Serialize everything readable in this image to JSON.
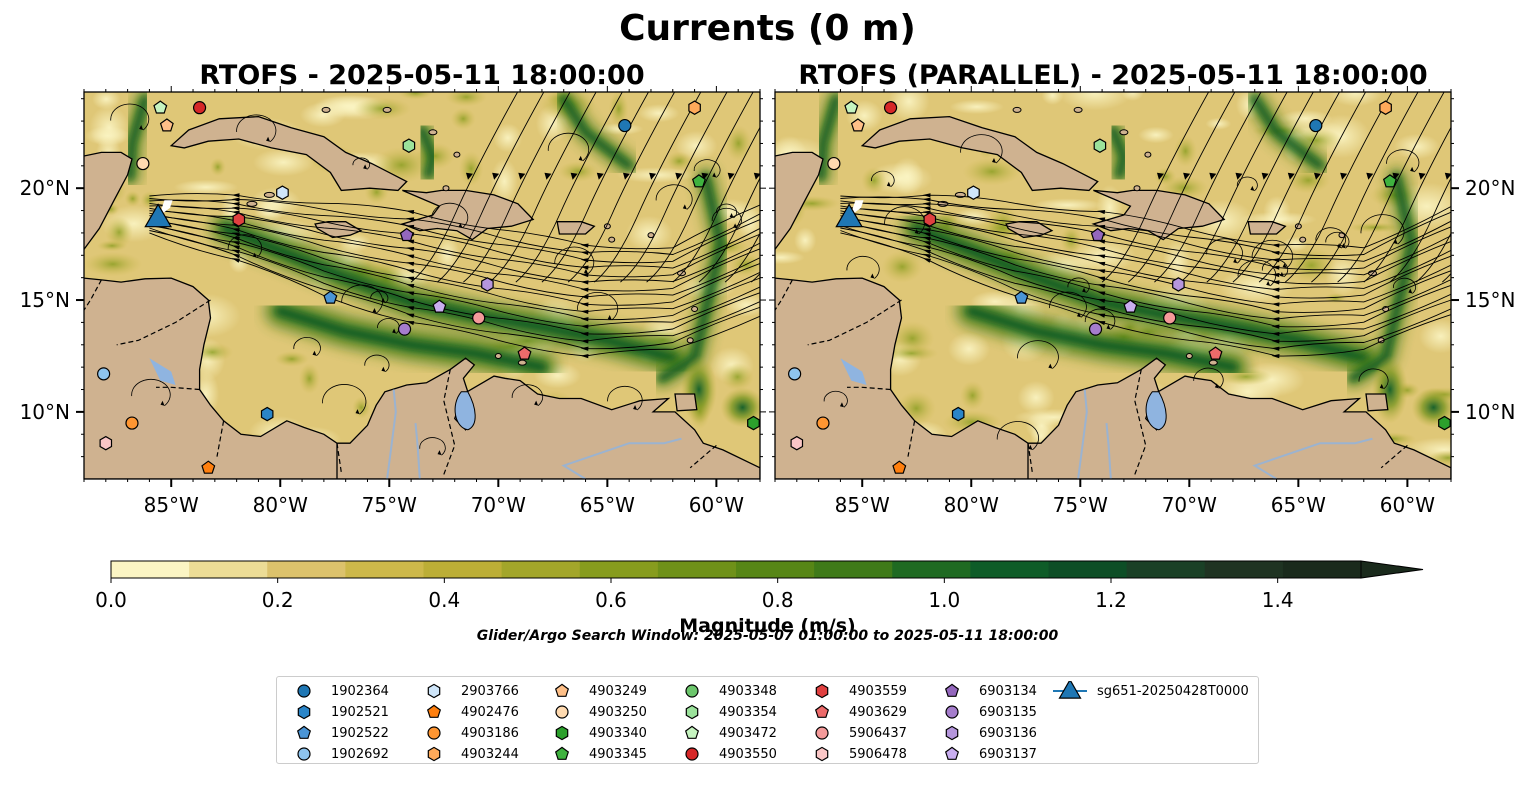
{
  "figure": {
    "title": "Currents (0 m)",
    "panels": [
      {
        "title": "RTOFS - 2025-05-11 18:00:00"
      },
      {
        "title": "RTOFS (PARALLEL) - 2025-05-11 18:00:00"
      }
    ],
    "map_extent": {
      "lon": [
        -89,
        -58
      ],
      "lat": [
        7,
        24.3
      ]
    },
    "lon_ticks": [
      {
        "value": -85,
        "label": "85°W"
      },
      {
        "value": -80,
        "label": "80°W"
      },
      {
        "value": -75,
        "label": "75°W"
      },
      {
        "value": -70,
        "label": "70°W"
      },
      {
        "value": -65,
        "label": "65°W"
      },
      {
        "value": -60,
        "label": "60°W"
      }
    ],
    "lat_ticks": [
      {
        "value": 20,
        "label": "20°N"
      },
      {
        "value": 15,
        "label": "15°N"
      },
      {
        "value": 10,
        "label": "10°N"
      }
    ],
    "colorbar": {
      "label": "Magnitude (m/s)",
      "min": 0.0,
      "max": 1.5,
      "extend": "max",
      "ticks": [
        "0.0",
        "0.2",
        "0.4",
        "0.6",
        "0.8",
        "1.0",
        "1.2",
        "1.4"
      ],
      "colors": [
        "#fbf5c4",
        "#ecdc96",
        "#dcc26c",
        "#cdb84a",
        "#bcae36",
        "#a3a62a",
        "#879c1e",
        "#6f9119",
        "#578616",
        "#3f7a19",
        "#1f6a22",
        "#0e5c28",
        "#0d4e26",
        "#1a4026",
        "#1f3322",
        "#1a2a1c"
      ]
    },
    "search_window": "Glider/Argo Search Window: 2025-05-07 01:00:00 to 2025-05-11 18:00:00",
    "land_color": "#cfb290",
    "lake_color": "#8fb4e0",
    "river_color": "#9bb3d0"
  },
  "legend": [
    {
      "label": "1902364",
      "marker": "circle",
      "color": "#1f77b4"
    },
    {
      "label": "1902521",
      "marker": "hexagon",
      "color": "#2a85c8"
    },
    {
      "label": "1902522",
      "marker": "pentagon",
      "color": "#4a95d6"
    },
    {
      "label": "1902692",
      "marker": "circle",
      "color": "#8ec4ee"
    },
    {
      "label": "2903766",
      "marker": "hexagon",
      "color": "#cfe6fa"
    },
    {
      "label": "4902476",
      "marker": "pentagon",
      "color": "#ff7f0e"
    },
    {
      "label": "4903186",
      "marker": "circle",
      "color": "#ff9632"
    },
    {
      "label": "4903244",
      "marker": "hexagon",
      "color": "#ffaa5a"
    },
    {
      "label": "4903249",
      "marker": "pentagon",
      "color": "#ffc088"
    },
    {
      "label": "4903250",
      "marker": "circle",
      "color": "#ffdab0"
    },
    {
      "label": "4903340",
      "marker": "hexagon",
      "color": "#2ca02c"
    },
    {
      "label": "4903345",
      "marker": "pentagon",
      "color": "#3fb23f"
    },
    {
      "label": "4903348",
      "marker": "circle",
      "color": "#6cc66c"
    },
    {
      "label": "4903354",
      "marker": "hexagon",
      "color": "#9be29b"
    },
    {
      "label": "4903472",
      "marker": "pentagon",
      "color": "#c6f4c0"
    },
    {
      "label": "4903550",
      "marker": "circle",
      "color": "#d62728"
    },
    {
      "label": "4903559",
      "marker": "hexagon",
      "color": "#e04040"
    },
    {
      "label": "4903629",
      "marker": "pentagon",
      "color": "#ec6a6a"
    },
    {
      "label": "5906437",
      "marker": "circle",
      "color": "#f49a9a"
    },
    {
      "label": "5906478",
      "marker": "hexagon",
      "color": "#fac6c6"
    },
    {
      "label": "6903134",
      "marker": "pentagon",
      "color": "#9467bd"
    },
    {
      "label": "6903135",
      "marker": "circle",
      "color": "#a57dcc"
    },
    {
      "label": "6903136",
      "marker": "hexagon",
      "color": "#b596dc"
    },
    {
      "label": "6903137",
      "marker": "pentagon",
      "color": "#c9aef0"
    },
    {
      "label": "sg651-20250428T0000",
      "marker": "triangle",
      "color": "#1f77b4",
      "line": true
    }
  ],
  "observations": [
    {
      "id": "1902364",
      "lon": -64.2,
      "lat": 22.8
    },
    {
      "id": "1902521",
      "lon": -80.6,
      "lat": 9.9
    },
    {
      "id": "1902522",
      "lon": -77.7,
      "lat": 15.1
    },
    {
      "id": "1902692",
      "lon": -88.1,
      "lat": 11.7
    },
    {
      "id": "2903766",
      "lon": -79.9,
      "lat": 19.8
    },
    {
      "id": "4902476",
      "lon": -83.3,
      "lat": 7.5
    },
    {
      "id": "4903186",
      "lon": -86.8,
      "lat": 9.5
    },
    {
      "id": "4903244",
      "lon": -61.0,
      "lat": 23.6
    },
    {
      "id": "4903249",
      "lon": -85.2,
      "lat": 22.8
    },
    {
      "id": "4903250",
      "lon": -86.3,
      "lat": 21.1
    },
    {
      "id": "4903340",
      "lon": -58.3,
      "lat": 9.5
    },
    {
      "id": "4903345",
      "lon": -60.8,
      "lat": 20.3
    },
    {
      "id": "4903354",
      "lon": -74.1,
      "lat": 21.9
    },
    {
      "id": "4903472",
      "lon": -85.5,
      "lat": 23.6
    },
    {
      "id": "4903550",
      "lon": -83.7,
      "lat": 23.6
    },
    {
      "id": "4903559",
      "lon": -81.9,
      "lat": 18.6
    },
    {
      "id": "4903629",
      "lon": -68.8,
      "lat": 12.6
    },
    {
      "id": "5906437",
      "lon": -70.9,
      "lat": 14.2
    },
    {
      "id": "5906478",
      "lon": -88.0,
      "lat": 8.6
    },
    {
      "id": "6903134",
      "lon": -74.2,
      "lat": 17.9
    },
    {
      "id": "6903135",
      "lon": -74.3,
      "lat": 13.7
    },
    {
      "id": "6903136",
      "lon": -70.5,
      "lat": 15.7
    },
    {
      "id": "6903137",
      "lon": -72.7,
      "lat": 14.7
    },
    {
      "id": "sg651-20250428T0000",
      "lon": -85.6,
      "lat": 18.7
    }
  ]
}
